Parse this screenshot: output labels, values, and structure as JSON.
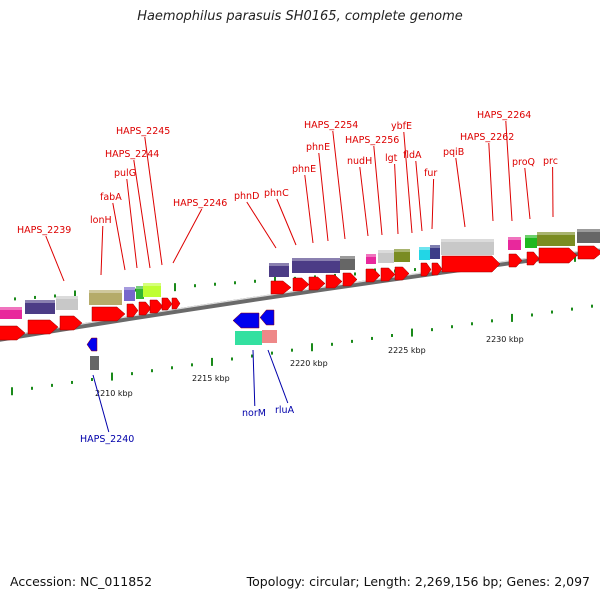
{
  "title": "Haemophilus parasuis SH0165, complete genome",
  "footer": {
    "accession": "Accession: NC_011852",
    "summary": "Topology: circular; Length: 2,269,156 bp; Genes: 2,097"
  },
  "colors": {
    "forward_label": "#dd0000",
    "reverse_label": "#0000aa",
    "cds_forward": "#ff0000",
    "cds_reverse": "#0000ee"
  },
  "scale_labels": [
    "2210 kbp",
    "2215 kbp",
    "2220 kbp",
    "2225 kbp",
    "2230 kbp"
  ],
  "forward_genes": [
    "HAPS_2239",
    "lonH",
    "fabA",
    "pulG",
    "HAPS_2244",
    "HAPS_2245",
    "HAPS_2246",
    "phnD",
    "phnC",
    "phnE",
    "phnE",
    "HAPS_2254",
    "nudH",
    "HAPS_2256",
    "lgt",
    "ybfE",
    "fldA",
    "fur",
    "pqiB",
    "HAPS_2262",
    "HAPS_2264",
    "proQ",
    "prc"
  ],
  "reverse_genes": [
    "HAPS_2240",
    "norM",
    "rluA"
  ]
}
